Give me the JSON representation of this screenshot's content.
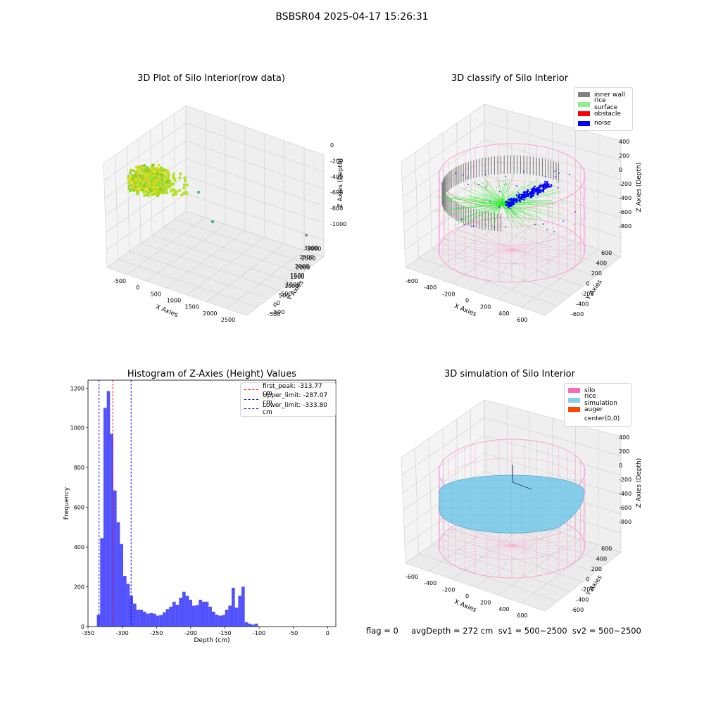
{
  "suptitle": "BSBSR04 2025-04-17 15:26:31",
  "panels": {
    "raw": {
      "title": "3D Plot of Silo Interior(row data)",
      "xlabel": "X Axies",
      "ylabel": "Y Axies",
      "zlabel": "Z Axies (Depth)",
      "x_ticks": [
        "-500",
        "0",
        "500",
        "1000",
        "1500",
        "2000",
        "2500"
      ],
      "y_ticks": [
        "-500",
        "0",
        "500",
        "1000",
        "1500",
        "2000",
        "2500",
        "3000"
      ],
      "z_ticks": [
        "0",
        "-200",
        "-400",
        "-600",
        "-800",
        "-1000"
      ]
    },
    "classify": {
      "title": "3D classify of Silo Interior",
      "xlabel": "X Axies",
      "ylabel": "Y Axies",
      "zlabel": "Z Axies (Depth)",
      "x_ticks": [
        "-600",
        "-400",
        "-200",
        "0",
        "200",
        "400",
        "600"
      ],
      "y_ticks": [
        "-600",
        "-400",
        "-200",
        "0",
        "200",
        "400",
        "600"
      ],
      "z_ticks": [
        "400",
        "200",
        "0",
        "-200",
        "-400",
        "-600",
        "-800"
      ],
      "legend": [
        {
          "label": "inner wall",
          "color": "#808080"
        },
        {
          "label": "rice surface",
          "color": "#90ee90"
        },
        {
          "label": "obstacle",
          "color": "#ff0000"
        },
        {
          "label": "noise",
          "color": "#0000ff"
        }
      ]
    },
    "simulation": {
      "title": "3D simulation of Silo Interior",
      "xlabel": "X Axies",
      "ylabel": "Y Axies",
      "zlabel": "Z Axies (Depth)",
      "x_ticks": [
        "-600",
        "-400",
        "-200",
        "0",
        "200",
        "400",
        "600"
      ],
      "y_ticks": [
        "-600",
        "-400",
        "-200",
        "0",
        "200",
        "400",
        "600"
      ],
      "z_ticks": [
        "400",
        "200",
        "0",
        "-200",
        "-400",
        "-600",
        "-800"
      ],
      "legend": [
        {
          "label": "silo",
          "color": "#ff69b4"
        },
        {
          "label": "rice simulation",
          "color": "#87ceeb"
        },
        {
          "label": "auger",
          "color": "#ff4500"
        },
        {
          "label": "center(0,0)",
          "color": "#ffffff"
        }
      ]
    }
  },
  "chart_data": {
    "type": "bar",
    "title": "Histogram of Z-Axies (Height) Values",
    "xlabel": "Depth (cm)",
    "ylabel": "Frequency",
    "xlim": [
      -350,
      12
    ],
    "ylim": [
      0,
      1240
    ],
    "x_ticks": [
      -350,
      -300,
      -250,
      -200,
      -150,
      -100,
      -50,
      0
    ],
    "y_ticks": [
      0,
      200,
      400,
      600,
      800,
      1000,
      1200
    ],
    "bin_edges_start": -337,
    "bin_width": 4.8,
    "values": [
      60,
      445,
      1100,
      1185,
      970,
      685,
      525,
      415,
      255,
      215,
      155,
      115,
      85,
      85,
      75,
      65,
      68,
      65,
      55,
      58,
      72,
      88,
      100,
      125,
      110,
      145,
      175,
      155,
      135,
      105,
      108,
      135,
      125,
      125,
      100,
      75,
      60,
      55,
      58,
      85,
      105,
      195,
      95,
      155,
      200,
      22,
      15,
      10,
      15
    ],
    "bar_color": "#0000ff",
    "lines": [
      {
        "label": "first_peak: -313.77 cm",
        "value": -313.77,
        "color": "#ff0000"
      },
      {
        "label": "Upper_limit: -287.07 cm",
        "value": -287.07,
        "color": "#0000ff"
      },
      {
        "label": "Lower_limit: -333.80 cm",
        "value": -333.8,
        "color": "#0000ff"
      }
    ]
  },
  "status_text": "flag = 0     avgDepth = 272 cm  sv1 = 500~2500  sv2 = 500~2500"
}
